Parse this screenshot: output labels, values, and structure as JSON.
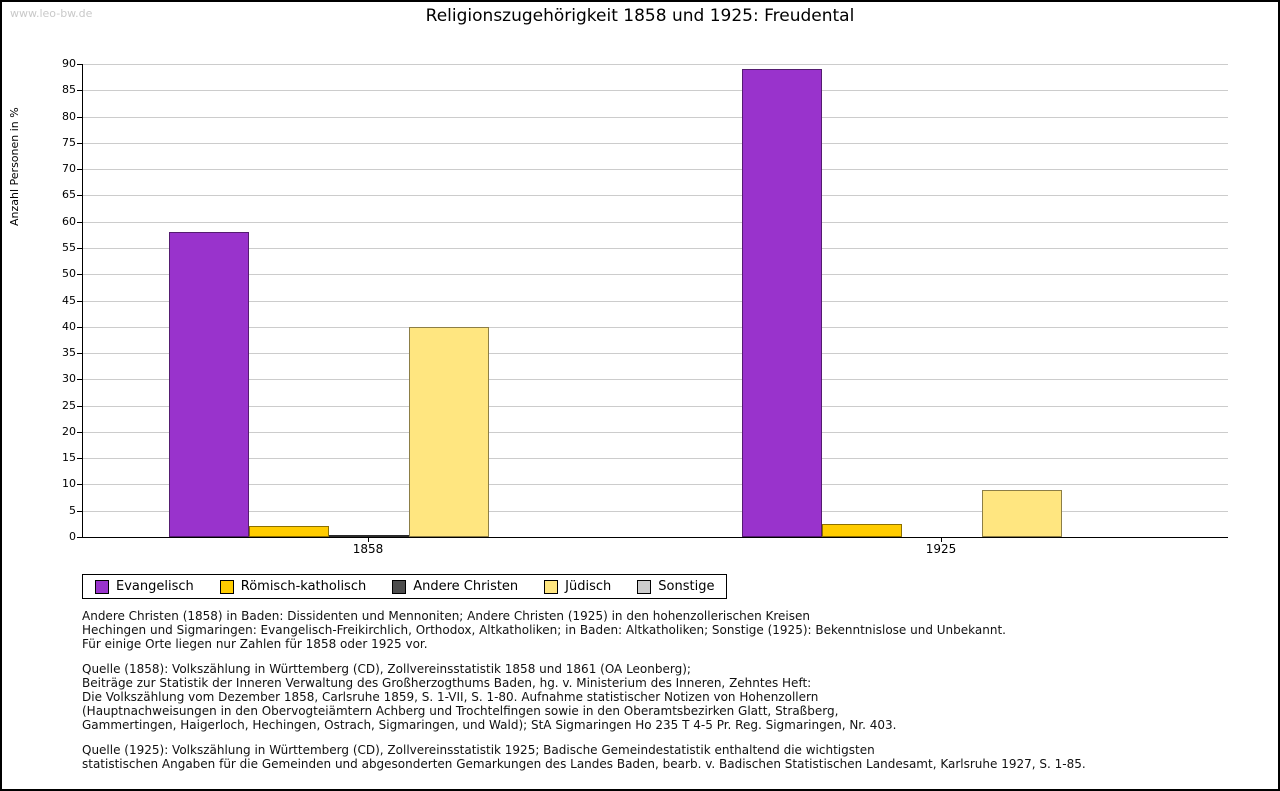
{
  "watermark": "www.leo-bw.de",
  "chart_data": {
    "type": "bar",
    "title": "Religionszugehörigkeit 1858 und 1925: Freudental",
    "ylabel": "Anzahl Personen in %",
    "xlabel": "",
    "ylim": [
      0,
      90
    ],
    "ytick_step": 5,
    "grid": true,
    "legend_position": "bottom-left",
    "categories": [
      "1858",
      "1925"
    ],
    "series": [
      {
        "name": "Evangelisch",
        "color": "#9933cc",
        "values": [
          58,
          89
        ]
      },
      {
        "name": "Römisch-katholisch",
        "color": "#ffcc00",
        "values": [
          2,
          2.5
        ]
      },
      {
        "name": "Andere Christen",
        "color": "#4d4d4d",
        "values": [
          0.2,
          0
        ]
      },
      {
        "name": "Jüdisch",
        "color": "#ffe680",
        "values": [
          40,
          9
        ]
      },
      {
        "name": "Sonstige",
        "color": "#cccccc",
        "values": [
          0,
          0
        ]
      }
    ],
    "grid_color": "#cccccc"
  },
  "notes": {
    "para1": [
      "Andere Christen (1858) in Baden: Dissidenten und Mennoniten; Andere Christen (1925) in den hohenzollerischen Kreisen",
      "Hechingen und Sigmaringen: Evangelisch-Freikirchlich, Orthodox, Altkatholiken; in Baden: Altkatholiken; Sonstige (1925): Bekenntnislose und Unbekannt.",
      "Für einige Orte liegen nur Zahlen für 1858 oder 1925 vor."
    ],
    "para2": [
      "Quelle (1858): Volkszählung in Württemberg (CD), Zollvereinsstatistik 1858 und 1861 (OA Leonberg);",
      "Beiträge zur Statistik der Inneren Verwaltung des Großherzogthums Baden, hg. v. Ministerium des Inneren, Zehntes Heft:",
      "Die Volkszählung vom Dezember 1858, Carlsruhe 1859, S. 1-VII, S. 1-80. Aufnahme statistischer Notizen von Hohenzollern",
      "(Hauptnachweisungen in den Obervogteiämtern Achberg und Trochtelfingen sowie in den Oberamtsbezirken Glatt, Straßberg,",
      "Gammertingen, Haigerloch, Hechingen, Ostrach, Sigmaringen, und Wald); StA Sigmaringen Ho 235 T 4-5 Pr. Reg. Sigmaringen, Nr. 403."
    ],
    "para3": [
      "Quelle (1925): Volkszählung in Württemberg (CD), Zollvereinsstatistik 1925; Badische Gemeindestatistik enthaltend die wichtigsten",
      "statistischen Angaben für die Gemeinden und abgesonderten Gemarkungen des Landes Baden, bearb. v. Badischen Statistischen Landesamt, Karlsruhe 1927, S. 1-85."
    ]
  }
}
